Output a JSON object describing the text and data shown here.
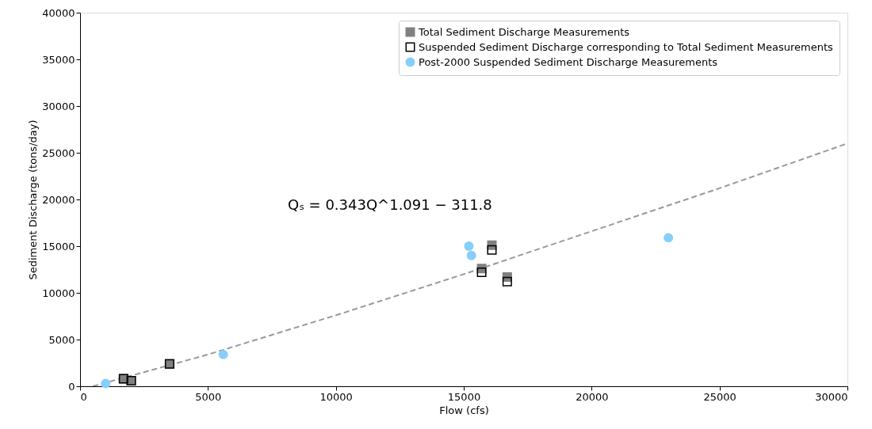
{
  "chart_data": {
    "type": "scatter",
    "xlabel": "Flow (cfs)",
    "ylabel": "Sediment Discharge (tons/day)",
    "xlim": [
      0,
      30000
    ],
    "xticks": [
      0,
      5000,
      10000,
      15000,
      20000,
      25000,
      30000
    ],
    "ylim": [
      0,
      40000
    ],
    "yticks": [
      0,
      5000,
      10000,
      15000,
      20000,
      25000,
      30000,
      35000,
      40000
    ],
    "grid": false,
    "legend": "top right",
    "annotations": [
      "Qₛ = 0.343Q^1.091 − 311.8"
    ],
    "series": [
      {
        "name": "Total Sediment Discharge Measurements",
        "marker": "square",
        "color": "#808080",
        "x": [
          1700,
          2000,
          3500,
          16100,
          15700,
          16700
        ],
        "values": [
          800,
          600,
          2400,
          15100,
          12600,
          11700
        ]
      },
      {
        "name": "Suspended Sediment Discharge corresponding to Total Sediment Measurements",
        "marker": "square",
        "color": "#000000",
        "x": [
          1700,
          2000,
          3500,
          16100,
          15700,
          16700
        ],
        "values": [
          800,
          600,
          2400,
          14600,
          12200,
          11200
        ]
      },
      {
        "name": "Post-2000 Suspended Sediment Discharge Measurements",
        "marker": "circle",
        "color": "#87cefa",
        "x": [
          1000,
          5600,
          15200,
          15300,
          23000
        ],
        "values": [
          300,
          3400,
          15000,
          14000,
          15900
        ]
      },
      {
        "type": "line",
        "line_style": "dashed",
        "color": "#999999",
        "x": [
          500,
          5000,
          10000,
          15000,
          20000,
          25000,
          30000
        ],
        "values": [
          0,
          3400,
          7600,
          12000,
          16600,
          21200,
          26000
        ]
      }
    ]
  }
}
